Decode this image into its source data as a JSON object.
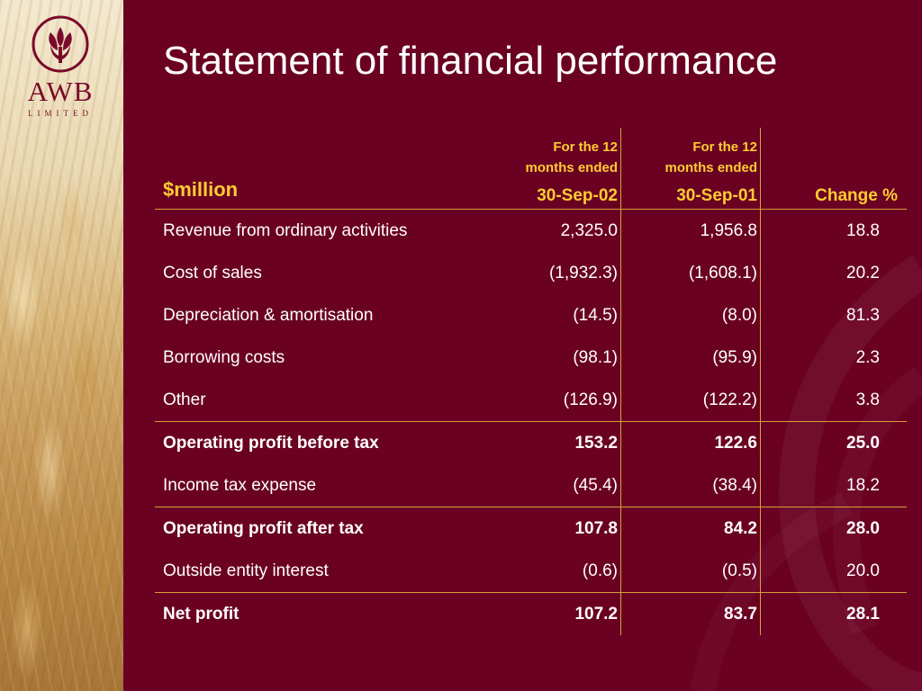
{
  "logo": {
    "name": "AWB",
    "subtitle": "LIMITED",
    "emblem": "wheat-emblem-icon"
  },
  "title": "Statement of financial performance",
  "table": {
    "unit_label": "$million",
    "columns": [
      {
        "line1": "For the 12",
        "line2": "months ended",
        "date": "30-Sep-02"
      },
      {
        "line1": "For the 12",
        "line2": "months ended",
        "date": "30-Sep-01"
      },
      {
        "line1": "",
        "line2": "",
        "date": "Change %"
      }
    ],
    "rows": [
      {
        "label": "Revenue from ordinary activities",
        "v1": "2,325.0",
        "v2": "1,956.8",
        "change": "18.8",
        "bold": false
      },
      {
        "label": "Cost of sales",
        "v1": "(1,932.3)",
        "v2": "(1,608.1)",
        "change": "20.2",
        "bold": false
      },
      {
        "label": "Depreciation & amortisation",
        "v1": "(14.5)",
        "v2": "(8.0)",
        "change": "81.3",
        "bold": false
      },
      {
        "label": "Borrowing costs",
        "v1": "(98.1)",
        "v2": "(95.9)",
        "change": "2.3",
        "bold": false
      },
      {
        "label": "Other",
        "v1": "(126.9)",
        "v2": "(122.2)",
        "change": "3.8",
        "bold": false
      },
      {
        "label": "Operating profit before tax",
        "v1": "153.2",
        "v2": "122.6",
        "change": "25.0",
        "bold": true
      },
      {
        "label": "Income tax expense",
        "v1": "(45.4)",
        "v2": "(38.4)",
        "change": "18.2",
        "bold": false
      },
      {
        "label": "Operating profit after tax",
        "v1": "107.8",
        "v2": "84.2",
        "change": "28.0",
        "bold": true
      },
      {
        "label": "Outside entity interest",
        "v1": "(0.6)",
        "v2": "(0.5)",
        "change": "20.0",
        "bold": false
      },
      {
        "label": "Net profit",
        "v1": "107.2",
        "v2": "83.7",
        "change": "28.1",
        "bold": true
      }
    ]
  },
  "colors": {
    "background": "#6a0022",
    "accent": "#ffcc33",
    "rule": "#d7a13a",
    "text": "#ffffff"
  }
}
